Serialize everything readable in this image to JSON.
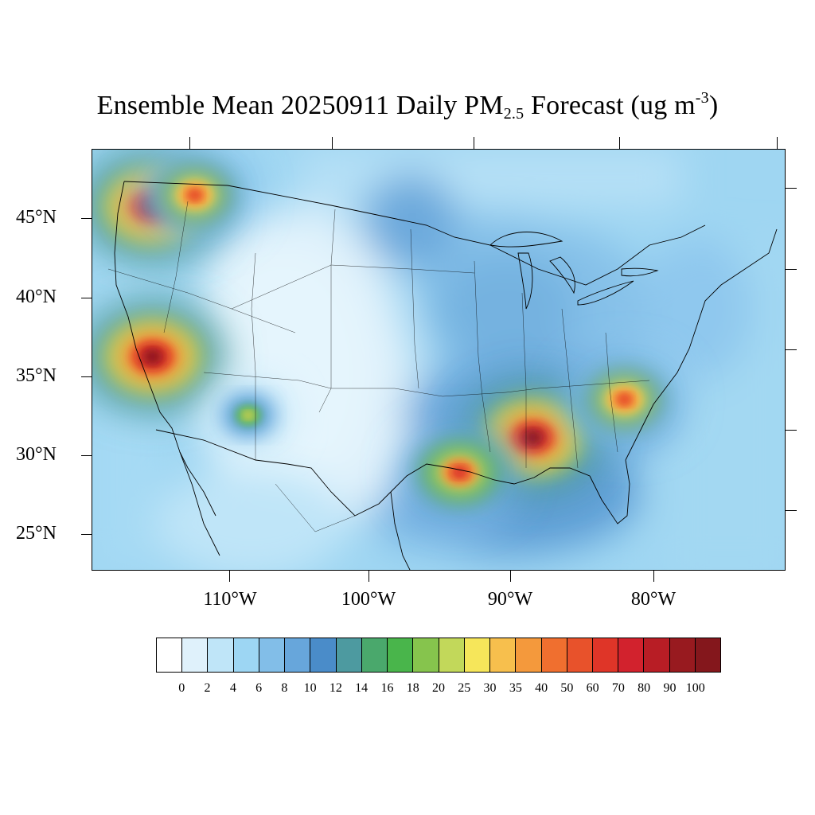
{
  "title": {
    "main": "Ensemble Mean 20250911 Daily PM",
    "subscript": "2.5",
    "middle": " Forecast (ug m",
    "superscript": "-3",
    "end": ")"
  },
  "lat_labels": [
    "45°N",
    "40°N",
    "35°N",
    "30°N",
    "25°N"
  ],
  "lon_labels": [
    "110°W",
    "100°W",
    "90°W",
    "80°W"
  ],
  "colorbar": {
    "labels": [
      "0",
      "2",
      "4",
      "6",
      "8",
      "10",
      "12",
      "14",
      "16",
      "18",
      "20",
      "25",
      "30",
      "35",
      "40",
      "50",
      "60",
      "70",
      "80",
      "90",
      "100"
    ],
    "colors": [
      "#ffffff",
      "#dff1fb",
      "#bfe5f8",
      "#9dd6f3",
      "#82bee8",
      "#67a6db",
      "#4a8cc9",
      "#4d9aa0",
      "#4aa86c",
      "#49b54b",
      "#86c44d",
      "#c2d85a",
      "#f6e65a",
      "#f7bf4d",
      "#f4993c",
      "#f06f2f",
      "#e8522b",
      "#df3528",
      "#d2222d",
      "#b81d25",
      "#981a1f",
      "#84171c"
    ]
  },
  "map": {
    "background_colors": {
      "ocean_pacific": "#a6daf4",
      "ocean_atlantic": "#a3d8f2",
      "gulf": "#6aa9dc",
      "plains": "#e1f3fc",
      "midwest": "#85c0e9",
      "southeast": "#67a6db"
    },
    "hotspots": [
      {
        "name": "pacific-northwest",
        "lon": -115.5,
        "lat": 45.8,
        "peak": 100
      },
      {
        "name": "idaho-montana",
        "lon": -112.5,
        "lat": 46.5,
        "peak": 60
      },
      {
        "name": "california-sierra",
        "lon": -115.5,
        "lat": 36.3,
        "peak": 100
      },
      {
        "name": "mississippi-alabama",
        "lon": -88.5,
        "lat": 31.2,
        "peak": 100
      },
      {
        "name": "louisiana-coast",
        "lon": -93.7,
        "lat": 29.0,
        "peak": 70
      },
      {
        "name": "south-carolina",
        "lon": -82.0,
        "lat": 33.6,
        "peak": 60
      },
      {
        "name": "new-mexico",
        "lon": -108.7,
        "lat": 32.6,
        "peak": 30
      }
    ]
  }
}
